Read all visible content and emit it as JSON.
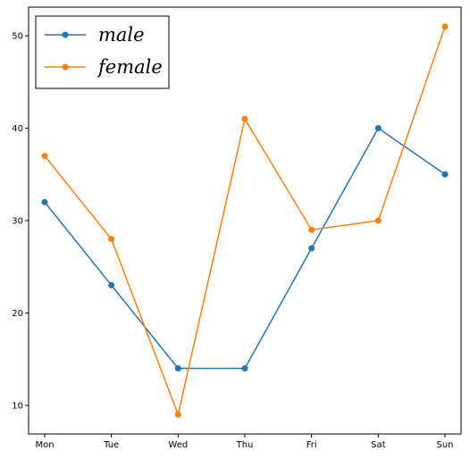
{
  "chart_data": {
    "type": "line",
    "categories": [
      "Mon",
      "Tue",
      "Wed",
      "Thu",
      "Fri",
      "Sat",
      "Sun"
    ],
    "series": [
      {
        "name": "male",
        "values": [
          32,
          23,
          14,
          14,
          27,
          40,
          35
        ],
        "color": "#1f77b4",
        "marker": "circle"
      },
      {
        "name": "female",
        "values": [
          37,
          28,
          9,
          41,
          29,
          30,
          51
        ],
        "color": "#ff7f0e",
        "marker": "circle"
      }
    ],
    "title": "",
    "xlabel": "",
    "ylabel": "",
    "ylim": [
      6.9,
      53.1
    ],
    "yticks": [
      10,
      20,
      30,
      40,
      50
    ],
    "grid": false,
    "legend_position": "upper-left"
  }
}
